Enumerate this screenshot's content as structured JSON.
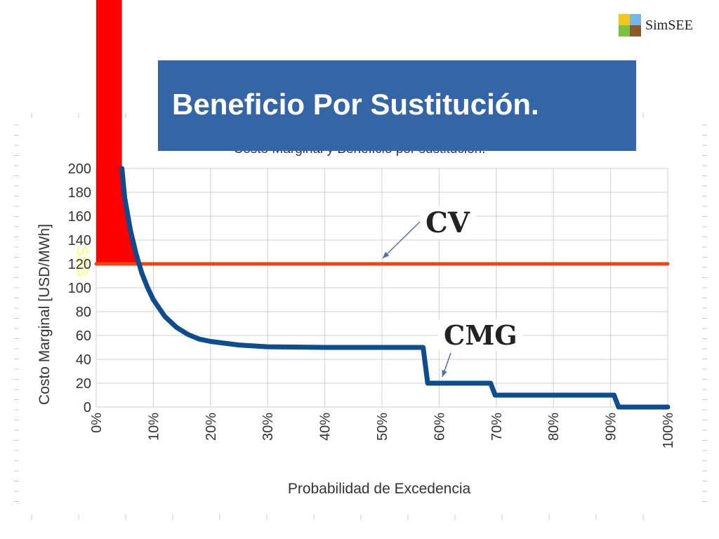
{
  "header": {
    "title": "Beneficio Por Sustitución.",
    "logo_text": "SimSEE",
    "logo_colors": [
      "#f5c518",
      "#74b7e6",
      "#7cc242",
      "#8b5a2b"
    ],
    "title_bg": "#3465a6"
  },
  "annotations": {
    "cv": "CV",
    "cmg": "CMG",
    "area_label": "SSB",
    "area_color": "#ff0000",
    "label_color": "#ffff66"
  },
  "chart_data": {
    "type": "line",
    "title": "Costo Marginal y Beneficio por sustitución.",
    "xlabel": "Probabilidad de Excedencia",
    "ylabel": "Costo Marginal [USD/MWh]",
    "xlim": [
      0,
      100
    ],
    "ylim": [
      0,
      200
    ],
    "grid": true,
    "x_ticks": [
      "0%",
      "10%",
      "20%",
      "30%",
      "40%",
      "50%",
      "60%",
      "70%",
      "80%",
      "90%",
      "100%"
    ],
    "y_ticks": [
      "0",
      "20",
      "40",
      "60",
      "80",
      "100",
      "120",
      "140",
      "160",
      "180",
      "200"
    ],
    "series": [
      {
        "name": "CV",
        "color": "#ee4411",
        "x": [
          0,
          100
        ],
        "y": [
          120,
          120
        ]
      },
      {
        "name": "CMG",
        "color": "#0d4c8e",
        "x": [
          4.5,
          5,
          6,
          7,
          8,
          9,
          10,
          12,
          14,
          16,
          18,
          20,
          25,
          30,
          40,
          50,
          57.2,
          57.6,
          58,
          69,
          69.4,
          69.8,
          90.6,
          91,
          91.4,
          100
        ],
        "y": [
          200,
          175,
          148,
          128,
          112,
          100,
          90,
          76,
          67,
          61,
          57,
          55,
          52,
          50.5,
          50,
          50,
          50,
          35,
          20,
          20,
          15,
          10,
          10,
          5,
          0,
          0
        ]
      }
    ]
  }
}
